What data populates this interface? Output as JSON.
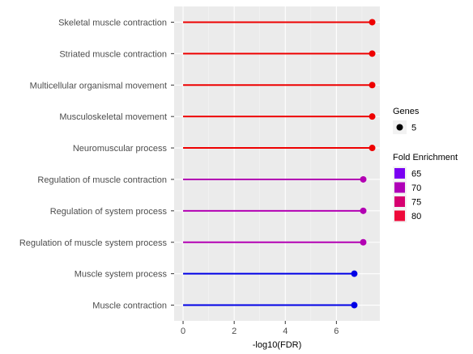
{
  "chart_data": {
    "type": "lollipop",
    "xlabel": "-log10(FDR)",
    "ylabel": "",
    "xlim": [
      -0.35,
      7.7
    ],
    "xticks": [
      0,
      2,
      4,
      6
    ],
    "xtick_labels": [
      "0",
      "2",
      "4",
      "6"
    ],
    "grid": true,
    "categories": [
      "Skeletal muscle contraction",
      "Striated muscle contraction",
      "Multicellular organismal movement",
      "Musculoskeletal movement",
      "Neuromuscular process",
      "Regulation of muscle contraction",
      "Regulation of system process",
      "Regulation of muscle system process",
      "Muscle system process",
      "Muscle contraction"
    ],
    "values": [
      7.4,
      7.4,
      7.4,
      7.4,
      7.4,
      7.05,
      7.05,
      7.05,
      6.7,
      6.7
    ],
    "fold_enrichment": [
      82,
      82,
      82,
      82,
      82,
      72,
      72,
      72,
      62,
      62
    ],
    "colors": [
      "#ee0000",
      "#ee0000",
      "#ee0000",
      "#ee0000",
      "#ee0000",
      "#b300b3",
      "#b300b3",
      "#b300b3",
      "#0000e6",
      "#0000e6"
    ],
    "genes": [
      5,
      5,
      5,
      5,
      5,
      5,
      5,
      5,
      5,
      5
    ],
    "legend": {
      "placement": "right",
      "size_title": "Genes",
      "size_items": [
        {
          "label": "5"
        }
      ],
      "color_title": "Fold Enrichment",
      "color_items": [
        {
          "label": "65",
          "color": "#7a00f2"
        },
        {
          "label": "70",
          "color": "#b000b8"
        },
        {
          "label": "75",
          "color": "#d60070"
        },
        {
          "label": "80",
          "color": "#ee0a3a"
        }
      ]
    }
  }
}
